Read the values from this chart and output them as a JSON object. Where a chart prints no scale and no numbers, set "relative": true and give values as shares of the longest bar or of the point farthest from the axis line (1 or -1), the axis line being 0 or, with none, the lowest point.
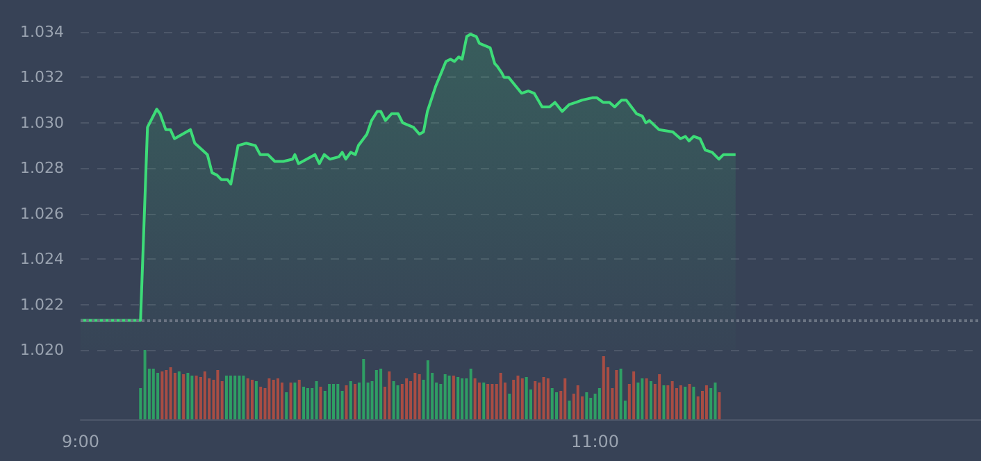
{
  "chart_data": [
    {
      "type": "area",
      "color": "#3ddc78",
      "xlim": [
        9,
        12.5
      ],
      "ylim": [
        1.02,
        1.034
      ],
      "yticks": [
        {
          "value": 1.02,
          "label": "1.020"
        },
        1.022,
        1.024,
        1.026,
        1.028,
        {
          "value": 1.03,
          "label": "1.030"
        },
        1.032,
        1.034
      ],
      "grid": "y",
      "tick_labels": "y",
      "ref_lines": [
        {
          "axis": "y",
          "value": 1.0213,
          "color": "#6b7483",
          "line_style": "dotted"
        }
      ],
      "x": [
        9,
        9.233,
        9.26,
        9.296,
        9.309,
        9.331,
        9.349,
        9.365,
        9.427,
        9.444,
        9.493,
        9.511,
        9.53,
        9.547,
        9.571,
        9.584,
        9.612,
        9.643,
        9.679,
        9.698,
        9.728,
        9.755,
        9.788,
        9.824,
        9.833,
        9.847,
        9.911,
        9.928,
        9.947,
        9.969,
        10.004,
        10.017,
        10.031,
        10.05,
        10.068,
        10.08,
        10.113,
        10.131,
        10.153,
        10.167,
        10.185,
        10.209,
        10.234,
        10.252,
        10.294,
        10.317,
        10.333,
        10.348,
        10.38,
        10.402,
        10.42,
        10.438,
        10.453,
        10.47,
        10.483,
        10.501,
        10.516,
        10.538,
        10.55,
        10.592,
        10.61,
        10.619,
        10.637,
        10.646,
        10.664,
        10.714,
        10.74,
        10.763,
        10.794,
        10.823,
        10.844,
        10.872,
        10.899,
        10.926,
        10.95,
        10.989,
        11.007,
        11.031,
        11.056,
        11.076,
        11.103,
        11.121,
        11.161,
        11.183,
        11.197,
        11.211,
        11.248,
        11.302,
        11.332,
        11.351,
        11.365,
        11.383,
        11.408,
        11.428,
        11.455,
        11.481,
        11.499,
        11.546
      ],
      "values": [
        1.0213,
        1.0213,
        1.0298,
        1.0306,
        1.0304,
        1.0297,
        1.0297,
        1.0293,
        1.0297,
        1.0291,
        1.0286,
        1.0278,
        1.0277,
        1.0275,
        1.0275,
        1.0273,
        1.029,
        1.0291,
        1.029,
        1.0286,
        1.0286,
        1.0283,
        1.0283,
        1.0284,
        1.0286,
        1.0282,
        1.0286,
        1.0282,
        1.0286,
        1.0284,
        1.0285,
        1.0287,
        1.0284,
        1.0287,
        1.0286,
        1.029,
        1.0295,
        1.0301,
        1.0305,
        1.0305,
        1.0301,
        1.0304,
        1.0304,
        1.03,
        1.0298,
        1.0295,
        1.0296,
        1.0305,
        1.0316,
        1.0322,
        1.0327,
        1.0328,
        1.0327,
        1.0329,
        1.0328,
        1.0338,
        1.0339,
        1.0338,
        1.0335,
        1.0333,
        1.0326,
        1.0325,
        1.0322,
        1.032,
        1.032,
        1.0313,
        1.0314,
        1.0313,
        1.0307,
        1.0307,
        1.0309,
        1.0305,
        1.0308,
        1.0309,
        1.031,
        1.0311,
        1.0311,
        1.0309,
        1.0309,
        1.0307,
        1.031,
        1.031,
        1.0304,
        1.0303,
        1.03,
        1.0301,
        1.0297,
        1.0296,
        1.0293,
        1.0294,
        1.0292,
        1.0294,
        1.0293,
        1.0288,
        1.0287,
        1.0284,
        1.0286,
        1.0286
      ]
    },
    {
      "type": "bar",
      "relative": true,
      "xlim": [
        9,
        12.5
      ],
      "xticks": [
        {
          "value": 9,
          "label": "9:00"
        },
        {
          "value": 11,
          "label": "11:00"
        }
      ],
      "tick_labels": "x",
      "x": [
        9.233,
        9.25,
        9.267,
        9.283,
        9.3,
        9.317,
        9.333,
        9.35,
        9.367,
        9.383,
        9.4,
        9.417,
        9.433,
        9.45,
        9.467,
        9.483,
        9.5,
        9.517,
        9.533,
        9.55,
        9.567,
        9.583,
        9.6,
        9.617,
        9.633,
        9.65,
        9.667,
        9.683,
        9.7,
        9.717,
        9.733,
        9.75,
        9.767,
        9.783,
        9.8,
        9.817,
        9.833,
        9.85,
        9.867,
        9.883,
        9.9,
        9.917,
        9.933,
        9.95,
        9.967,
        9.983,
        10,
        10.017,
        10.033,
        10.05,
        10.067,
        10.083,
        10.1,
        10.117,
        10.133,
        10.15,
        10.167,
        10.183,
        10.2,
        10.217,
        10.233,
        10.25,
        10.267,
        10.283,
        10.3,
        10.317,
        10.333,
        10.35,
        10.367,
        10.383,
        10.4,
        10.417,
        10.433,
        10.45,
        10.467,
        10.483,
        10.5,
        10.517,
        10.533,
        10.55,
        10.567,
        10.583,
        10.6,
        10.617,
        10.633,
        10.65,
        10.667,
        10.683,
        10.7,
        10.717,
        10.733,
        10.75,
        10.767,
        10.783,
        10.8,
        10.817,
        10.833,
        10.85,
        10.867,
        10.883,
        10.9,
        10.917,
        10.933,
        10.95,
        10.967,
        10.983,
        11,
        11.017,
        11.033,
        11.05,
        11.067,
        11.083,
        11.1,
        11.117,
        11.133,
        11.15,
        11.167,
        11.183,
        11.2,
        11.217,
        11.233,
        11.25,
        11.267,
        11.283,
        11.3,
        11.317,
        11.333,
        11.35,
        11.367,
        11.383,
        11.4,
        11.417,
        11.433,
        11.45,
        11.467,
        11.483
      ],
      "values": [
        0.45,
        1,
        0.73,
        0.73,
        0.67,
        0.69,
        0.71,
        0.75,
        0.67,
        0.69,
        0.65,
        0.67,
        0.63,
        0.63,
        0.61,
        0.69,
        0.59,
        0.57,
        0.71,
        0.55,
        0.63,
        0.63,
        0.63,
        0.63,
        0.63,
        0.59,
        0.57,
        0.55,
        0.47,
        0.45,
        0.59,
        0.57,
        0.59,
        0.53,
        0.39,
        0.53,
        0.53,
        0.57,
        0.47,
        0.45,
        0.45,
        0.55,
        0.47,
        0.41,
        0.51,
        0.51,
        0.51,
        0.41,
        0.49,
        0.55,
        0.51,
        0.53,
        0.87,
        0.53,
        0.55,
        0.71,
        0.73,
        0.47,
        0.69,
        0.55,
        0.49,
        0.51,
        0.59,
        0.55,
        0.67,
        0.65,
        0.57,
        0.85,
        0.67,
        0.53,
        0.51,
        0.65,
        0.63,
        0.63,
        0.61,
        0.59,
        0.59,
        0.73,
        0.59,
        0.53,
        0.53,
        0.51,
        0.51,
        0.51,
        0.67,
        0.53,
        0.37,
        0.57,
        0.63,
        0.59,
        0.61,
        0.43,
        0.55,
        0.53,
        0.61,
        0.59,
        0.45,
        0.39,
        0.41,
        0.59,
        0.27,
        0.37,
        0.49,
        0.33,
        0.39,
        0.31,
        0.37,
        0.45,
        0.91,
        0.75,
        0.45,
        0.71,
        0.73,
        0.27,
        0.51,
        0.69,
        0.53,
        0.59,
        0.59,
        0.55,
        0.51,
        0.65,
        0.49,
        0.49,
        0.55,
        0.45,
        0.49,
        0.47,
        0.51,
        0.47,
        0.33,
        0.41,
        0.49,
        0.45,
        0.53,
        0.39
      ],
      "colors": [
        "#2f9e64",
        "#2f9e64",
        "#2f9e64",
        "#2f9e64",
        "#2f9e64",
        "#a84d44",
        "#a84d44",
        "#a84d44",
        "#a84d44",
        "#2f9e64",
        "#a84d44",
        "#2f9e64",
        "#2f9e64",
        "#a84d44",
        "#a84d44",
        "#a84d44",
        "#a84d44",
        "#a84d44",
        "#a84d44",
        "#a84d44",
        "#2f9e64",
        "#2f9e64",
        "#2f9e64",
        "#2f9e64",
        "#2f9e64",
        "#a84d44",
        "#a84d44",
        "#2f9e64",
        "#a84d44",
        "#a84d44",
        "#a84d44",
        "#a84d44",
        "#a84d44",
        "#a84d44",
        "#2f9e64",
        "#a84d44",
        "#2f9e64",
        "#a84d44",
        "#2f9e64",
        "#2f9e64",
        "#2f9e64",
        "#2f9e64",
        "#a84d44",
        "#2f9e64",
        "#2f9e64",
        "#2f9e64",
        "#2f9e64",
        "#2f9e64",
        "#a84d44",
        "#2f9e64",
        "#a84d44",
        "#2f9e64",
        "#2f9e64",
        "#2f9e64",
        "#2f9e64",
        "#2f9e64",
        "#2f9e64",
        "#a84d44",
        "#a84d44",
        "#2f9e64",
        "#2f9e64",
        "#a84d44",
        "#a84d44",
        "#a84d44",
        "#a84d44",
        "#a84d44",
        "#2f9e64",
        "#2f9e64",
        "#2f9e64",
        "#2f9e64",
        "#2f9e64",
        "#2f9e64",
        "#2f9e64",
        "#a84d44",
        "#2f9e64",
        "#2f9e64",
        "#2f9e64",
        "#2f9e64",
        "#a84d44",
        "#a84d44",
        "#2f9e64",
        "#a84d44",
        "#a84d44",
        "#a84d44",
        "#a84d44",
        "#a84d44",
        "#2f9e64",
        "#a84d44",
        "#a84d44",
        "#a84d44",
        "#2f9e64",
        "#2f9e64",
        "#a84d44",
        "#a84d44",
        "#a84d44",
        "#a84d44",
        "#2f9e64",
        "#2f9e64",
        "#a84d44",
        "#a84d44",
        "#2f9e64",
        "#a84d44",
        "#a84d44",
        "#a84d44",
        "#2f9e64",
        "#2f9e64",
        "#2f9e64",
        "#2f9e64",
        "#a84d44",
        "#a84d44",
        "#a84d44",
        "#a84d44",
        "#2f9e64",
        "#2f9e64",
        "#a84d44",
        "#a84d44",
        "#2f9e64",
        "#2f9e64",
        "#a84d44",
        "#2f9e64",
        "#a84d44",
        "#a84d44",
        "#2f9e64",
        "#a84d44",
        "#a84d44",
        "#a84d44",
        "#a84d44",
        "#2f9e64",
        "#a84d44",
        "#2f9e64",
        "#a84d44",
        "#a84d44",
        "#a84d44",
        "#2f9e64",
        "#2f9e64",
        "#a84d44"
      ]
    }
  ]
}
